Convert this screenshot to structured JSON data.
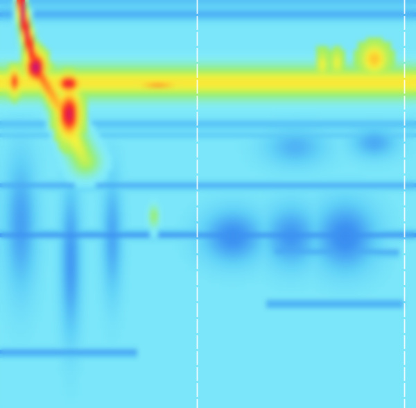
{
  "chart_data": {
    "type": "heatmap",
    "title": "",
    "xlabel": "",
    "ylabel": "",
    "xlim": [
      0,
      100
    ],
    "ylim": [
      0,
      100
    ],
    "value_range": [
      0,
      1
    ],
    "colormap": {
      "name": "jet",
      "stops": [
        {
          "t": 0.0,
          "color": "#1d5fe0"
        },
        {
          "t": 0.18,
          "color": "#3f96f2"
        },
        {
          "t": 0.3,
          "color": "#5fd0f7"
        },
        {
          "t": 0.4,
          "color": "#82ecfa"
        },
        {
          "t": 0.55,
          "color": "#9bef6a"
        },
        {
          "t": 0.66,
          "color": "#f8f33b"
        },
        {
          "t": 0.76,
          "color": "#ffb32a"
        },
        {
          "t": 0.86,
          "color": "#ff2a1c"
        },
        {
          "t": 1.0,
          "color": "#c0108c"
        }
      ]
    },
    "background_level": 0.38,
    "bands": [
      {
        "y": 0.5,
        "h": 1.6,
        "x0": 0,
        "x1": 100,
        "value": 0.27
      },
      {
        "y": 3.5,
        "h": 1.6,
        "x0": 0,
        "x1": 100,
        "value": 0.22
      },
      {
        "y": 20.5,
        "h": 1.2,
        "x0": 0,
        "x1": 100,
        "value": 0.66
      },
      {
        "y": 30.5,
        "h": 1.0,
        "x0": 0,
        "x1": 100,
        "value": 0.24
      },
      {
        "y": 33.0,
        "h": 0.8,
        "x0": 0,
        "x1": 100,
        "value": 0.28
      },
      {
        "y": 45.5,
        "h": 1.0,
        "x0": 0,
        "x1": 100,
        "value": 0.22
      },
      {
        "y": 57.5,
        "h": 1.0,
        "x0": 0,
        "x1": 100,
        "value": 0.16
      },
      {
        "y": 62.0,
        "h": 1.0,
        "x0": 66,
        "x1": 96,
        "value": 0.2
      },
      {
        "y": 74.5,
        "h": 0.8,
        "x0": 64,
        "x1": 97,
        "value": 0.14
      },
      {
        "y": 86.5,
        "h": 1.0,
        "x0": 0,
        "x1": 33,
        "value": 0.18
      }
    ],
    "patches": [
      {
        "x": 5,
        "y": 55,
        "rx": 4,
        "ry": 18,
        "value": 0.2
      },
      {
        "x": 17,
        "y": 64,
        "rx": 2.5,
        "ry": 20,
        "value": 0.18
      },
      {
        "x": 27,
        "y": 58,
        "rx": 2.5,
        "ry": 16,
        "value": 0.21
      },
      {
        "x": 56,
        "y": 58,
        "rx": 8,
        "ry": 7,
        "value": 0.16
      },
      {
        "x": 70,
        "y": 58,
        "rx": 7,
        "ry": 8,
        "value": 0.18
      },
      {
        "x": 83,
        "y": 58,
        "rx": 8,
        "ry": 9,
        "value": 0.15
      },
      {
        "x": 71,
        "y": 36,
        "rx": 8,
        "ry": 5,
        "value": 0.24
      },
      {
        "x": 90,
        "y": 35,
        "rx": 6,
        "ry": 4,
        "value": 0.22
      },
      {
        "x": 37,
        "y": 53,
        "rx": 1.2,
        "ry": 2.8,
        "value": 0.56
      }
    ],
    "ridge": {
      "y": 20.2,
      "x0": 0,
      "x1": 100,
      "half_height": 4.0,
      "value": 0.66,
      "hot_spots": [
        {
          "x": 3.5,
          "y": 20.0,
          "rx": 1.2,
          "ry": 2.6,
          "value": 0.86
        },
        {
          "x": 16.5,
          "y": 20.5,
          "rx": 2.4,
          "ry": 1.9,
          "value": 0.92
        },
        {
          "x": 38.0,
          "y": 20.6,
          "rx": 5.0,
          "ry": 0.7,
          "value": 0.82
        },
        {
          "x": 77.5,
          "y": 15.8,
          "rx": 1.0,
          "ry": 2.4,
          "value": 0.66
        },
        {
          "x": 81.0,
          "y": 15.4,
          "rx": 1.0,
          "ry": 2.4,
          "value": 0.66
        },
        {
          "x": 90.0,
          "y": 14.5,
          "rx": 2.4,
          "ry": 2.8,
          "value": 0.74
        }
      ]
    },
    "streak": {
      "points": [
        [
          5.0,
          0.0
        ],
        [
          5.8,
          5.5
        ],
        [
          7.2,
          11.5
        ],
        [
          8.8,
          17.0
        ],
        [
          11.5,
          21.5
        ],
        [
          14.5,
          26.5
        ],
        [
          16.5,
          31.0
        ],
        [
          18.5,
          35.5
        ],
        [
          20.5,
          39.5
        ]
      ],
      "peak_value": 1.0,
      "tail_value": 0.6,
      "hot_spots": [
        {
          "x": 8.6,
          "y": 16.5,
          "rx": 2.0,
          "ry": 3.0,
          "value": 1.0
        },
        {
          "x": 16.6,
          "y": 28.0,
          "rx": 2.2,
          "ry": 4.8,
          "value": 0.95
        }
      ]
    },
    "markers": [
      {
        "x": 47.3,
        "style": "dashed-white"
      },
      {
        "x": 97.2,
        "style": "dashed-white"
      }
    ],
    "grid": false,
    "legend": "none"
  }
}
